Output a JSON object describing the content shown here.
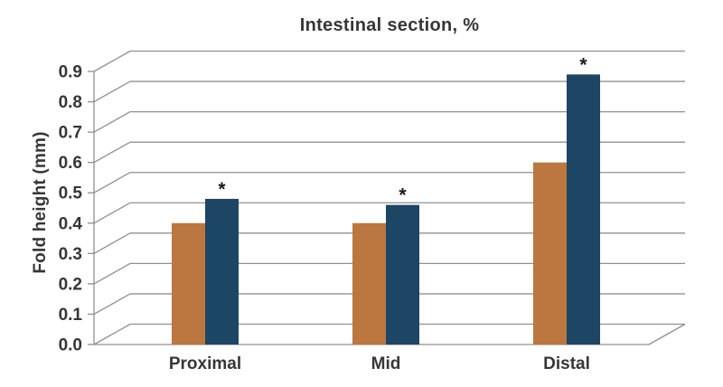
{
  "chart_data": {
    "type": "bar",
    "title": "Intestinal section, %",
    "xlabel": "",
    "ylabel": "Fold height (mm)",
    "categories": [
      "Proximal",
      "Mid",
      "Distal"
    ],
    "series": [
      {
        "name": "orange-series",
        "color": "#bb773f",
        "values": [
          0.4,
          0.4,
          0.6
        ]
      },
      {
        "name": "blue-series",
        "color": "#1d4564",
        "values": [
          0.48,
          0.46,
          0.89
        ]
      }
    ],
    "annotations": [
      {
        "text": "*",
        "category": "Proximal",
        "series": "blue-series"
      },
      {
        "text": "*",
        "category": "Mid",
        "series": "blue-series"
      },
      {
        "text": "*",
        "category": "Distal",
        "series": "blue-series"
      }
    ],
    "ylim": [
      0.0,
      0.9
    ],
    "ytick_labels": [
      "0.0",
      "0.1",
      "0.2",
      "0.3",
      "0.4",
      "0.5",
      "0.6",
      "0.7",
      "0.8",
      "0.9"
    ],
    "grid": true,
    "legend": "none",
    "style_notes": {
      "axis_style": "pseudo-3d skewed gridlines",
      "gridline_color": "#909090",
      "text_color": "#363636",
      "annotation_color": "#1b1b1b",
      "background": "#ffffff"
    }
  }
}
